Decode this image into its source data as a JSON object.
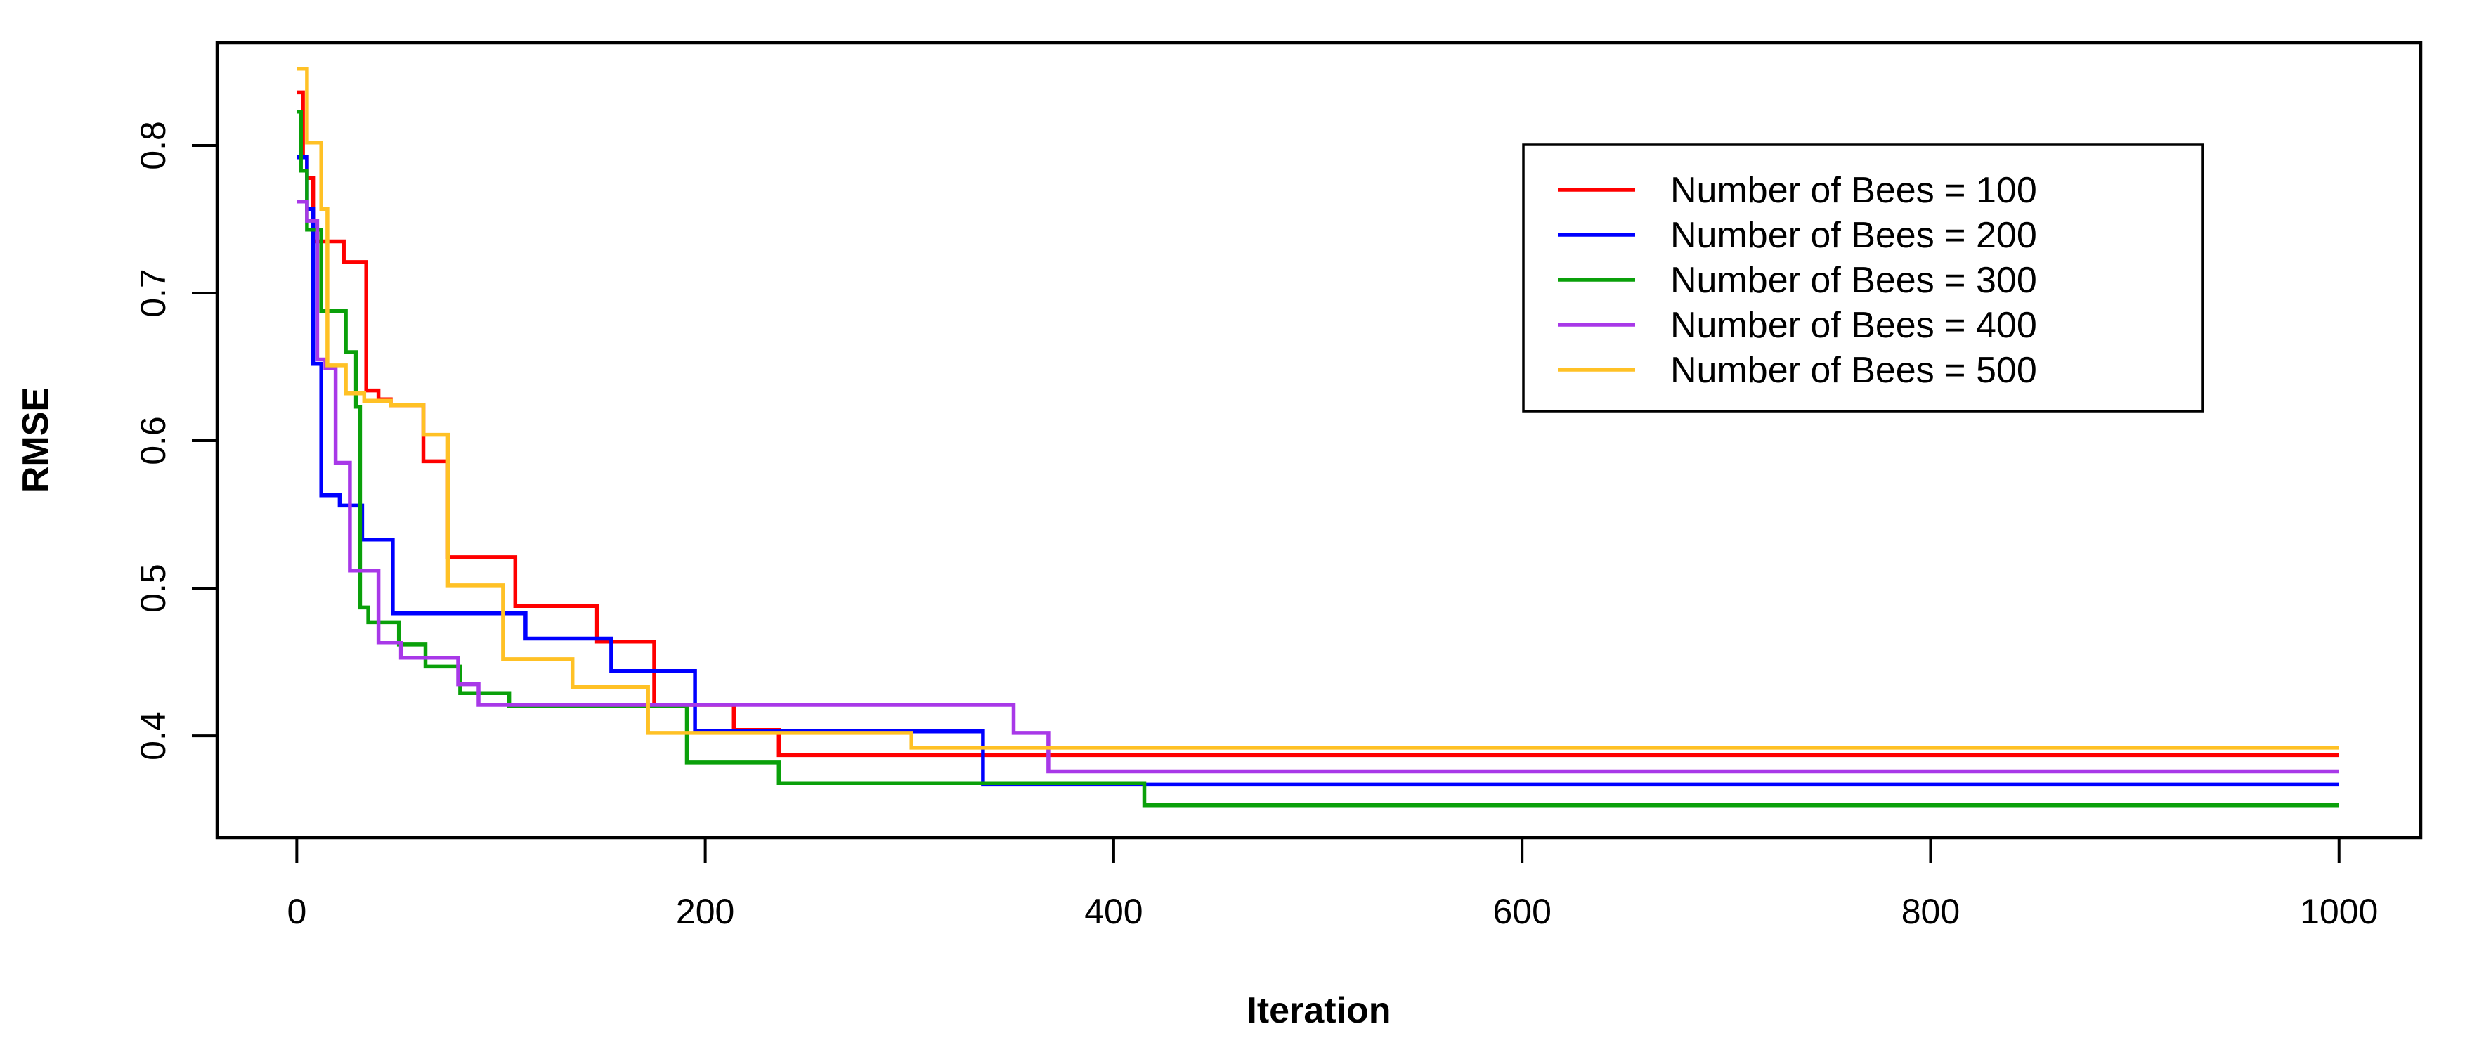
{
  "figure": {
    "background_color": "#ffffff",
    "axis_color": "#000000"
  },
  "chart_data": {
    "type": "line",
    "subtype": "step-after",
    "title": "",
    "xlabel": "Iteration",
    "ylabel": "RMSE",
    "xlim": [
      -39,
      1040
    ],
    "ylim": [
      0.331,
      0.8695
    ],
    "x_ticks": [
      0,
      200,
      400,
      600,
      800,
      1000
    ],
    "y_ticks": [
      0.4,
      0.5,
      0.6,
      0.7,
      0.8
    ],
    "x_end": 1000,
    "grid": false,
    "legend_position": "top-right",
    "series": [
      {
        "name": "Number of Bees = 100",
        "color": "#FF0000",
        "points": [
          [
            0,
            0.836
          ],
          [
            3,
            0.792
          ],
          [
            5,
            0.778
          ],
          [
            8,
            0.735
          ],
          [
            23,
            0.721
          ],
          [
            34,
            0.634
          ],
          [
            40,
            0.628
          ],
          [
            46,
            0.624
          ],
          [
            62,
            0.586
          ],
          [
            74,
            0.521
          ],
          [
            107,
            0.488
          ],
          [
            147,
            0.464
          ],
          [
            175,
            0.421
          ],
          [
            214,
            0.404
          ],
          [
            236,
            0.387
          ]
        ]
      },
      {
        "name": "Number of Bees = 200",
        "color": "#0000FF",
        "points": [
          [
            0,
            0.792
          ],
          [
            5,
            0.757
          ],
          [
            8,
            0.652
          ],
          [
            12,
            0.563
          ],
          [
            21,
            0.556
          ],
          [
            32,
            0.533
          ],
          [
            47,
            0.483
          ],
          [
            112,
            0.466
          ],
          [
            154,
            0.444
          ],
          [
            195,
            0.403
          ],
          [
            336,
            0.367
          ]
        ]
      },
      {
        "name": "Number of Bees = 300",
        "color": "#0AA00A",
        "points": [
          [
            0,
            0.823
          ],
          [
            2,
            0.783
          ],
          [
            5,
            0.743
          ],
          [
            12,
            0.688
          ],
          [
            24,
            0.66
          ],
          [
            29,
            0.623
          ],
          [
            31,
            0.487
          ],
          [
            35,
            0.477
          ],
          [
            50,
            0.462
          ],
          [
            63,
            0.447
          ],
          [
            80,
            0.429
          ],
          [
            104,
            0.42
          ],
          [
            191,
            0.382
          ],
          [
            236,
            0.368
          ],
          [
            415,
            0.353
          ]
        ]
      },
      {
        "name": "Number of Bees = 400",
        "color": "#A838E8",
        "points": [
          [
            0,
            0.762
          ],
          [
            5,
            0.749
          ],
          [
            10,
            0.655
          ],
          [
            14,
            0.649
          ],
          [
            19,
            0.585
          ],
          [
            26,
            0.512
          ],
          [
            40,
            0.463
          ],
          [
            51,
            0.453
          ],
          [
            79,
            0.435
          ],
          [
            89,
            0.421
          ],
          [
            351,
            0.402
          ],
          [
            368,
            0.376
          ]
        ]
      },
      {
        "name": "Number of Bees = 500",
        "color": "#FFC125",
        "points": [
          [
            0,
            0.852
          ],
          [
            5,
            0.802
          ],
          [
            12,
            0.757
          ],
          [
            15,
            0.651
          ],
          [
            24,
            0.632
          ],
          [
            33,
            0.627
          ],
          [
            46,
            0.624
          ],
          [
            62,
            0.604
          ],
          [
            74,
            0.502
          ],
          [
            101,
            0.452
          ],
          [
            135,
            0.433
          ],
          [
            172,
            0.402
          ],
          [
            301,
            0.392
          ]
        ]
      }
    ]
  }
}
